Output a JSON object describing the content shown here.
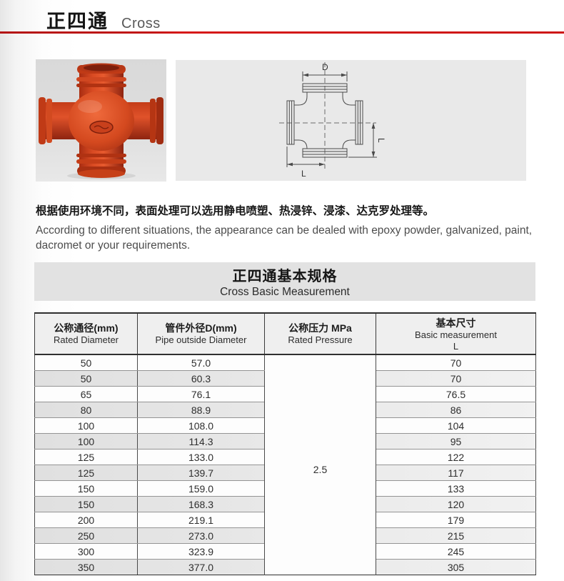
{
  "header": {
    "title_cn": "正四通",
    "title_en": "Cross"
  },
  "diagram": {
    "dim_d_label": "D",
    "dim_l_bottom_label": "L",
    "dim_l_right_label": "L"
  },
  "description": {
    "cn": "根据使用环境不同，表面处理可以选用静电喷塑、热浸锌、浸漆、达克罗处理等。",
    "en": "According to different situations, the appearance can be dealed with epoxy powder, galvanized, paint, dacromet or your requirements."
  },
  "spec_table": {
    "title_cn": "正四通基本规格",
    "title_en": "Cross Basic Measurement",
    "columns": [
      {
        "cn": "公称通径(mm)",
        "en": "Rated Diameter"
      },
      {
        "cn": "管件外径D(mm)",
        "en": "Pipe outside Diameter"
      },
      {
        "cn": "公称压力 MPa",
        "en": "Rated Pressure"
      },
      {
        "cn": "基本尺寸",
        "en": "Basic measurement",
        "sub": "L"
      }
    ],
    "rated_pressure": "2.5",
    "rows": [
      [
        "50",
        "57.0",
        "70"
      ],
      [
        "50",
        "60.3",
        "70"
      ],
      [
        "65",
        "76.1",
        "76.5"
      ],
      [
        "80",
        "88.9",
        "86"
      ],
      [
        "100",
        "108.0",
        "104"
      ],
      [
        "100",
        "114.3",
        "95"
      ],
      [
        "125",
        "133.0",
        "122"
      ],
      [
        "125",
        "139.7",
        "117"
      ],
      [
        "150",
        "159.0",
        "133"
      ],
      [
        "150",
        "168.3",
        "120"
      ],
      [
        "200",
        "219.1",
        "179"
      ],
      [
        "250",
        "273.0",
        "215"
      ],
      [
        "300",
        "323.9",
        "245"
      ],
      [
        "350",
        "377.0",
        "305"
      ]
    ]
  },
  "colors": {
    "accent_red": "#c31616",
    "fitting_red": "#d2441f",
    "table_stripe": "#e9e9e9",
    "panel_gray": "#e2e2e2",
    "drawing_bg": "#e9e9e9"
  }
}
